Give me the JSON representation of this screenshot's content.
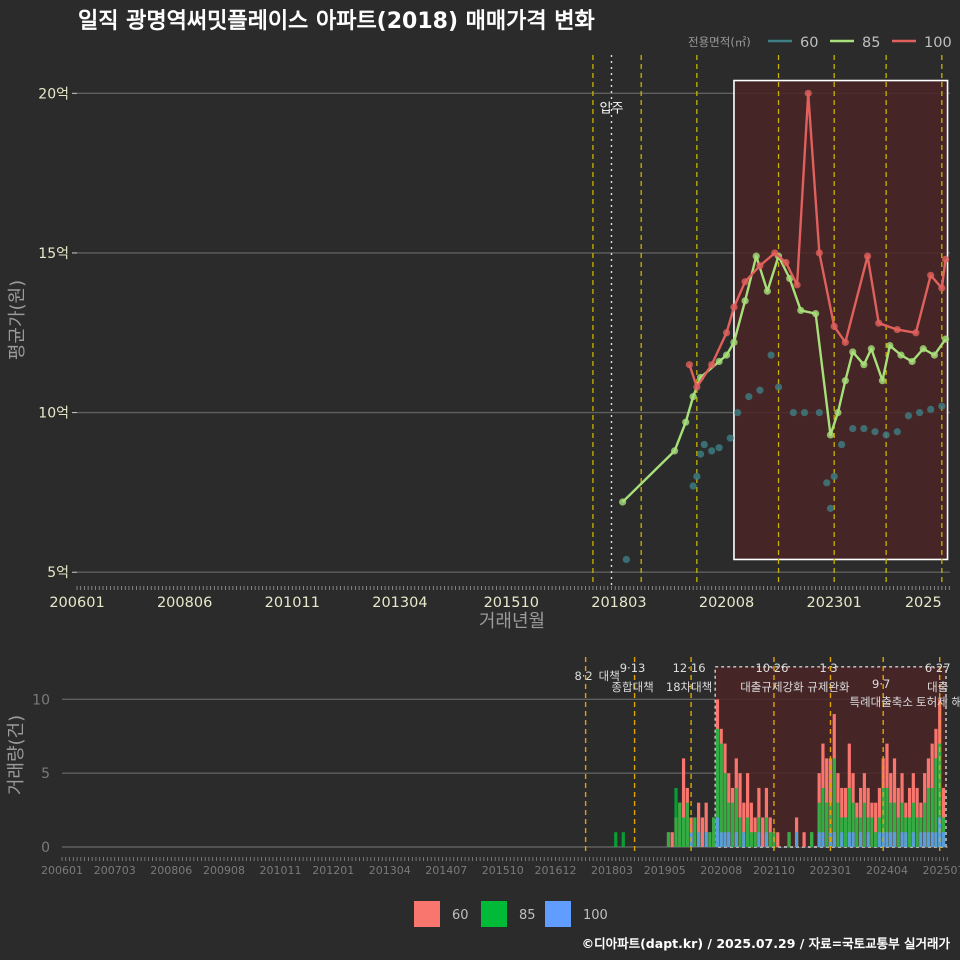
{
  "header": {
    "title": "일직 광명역써밋플레이스 아파트(2018) 매매가격 변화",
    "footer": "©디아파트(dapt.kr) / 2025.07.29 / 자료=국토교통부 실거래가"
  },
  "colors": {
    "background": "#2b2b2c",
    "s60": "#3d7f85",
    "s85": "#a7e07a",
    "s100": "#e0605c",
    "bar60": "#f8766d",
    "bar85": "#00ba38",
    "bar100": "#619cff",
    "policy_line": "#c8b400",
    "highlight_fill": "#4a2426"
  },
  "chart_data": [
    {
      "type": "line",
      "title": "일직 광명역써밋플레이스 아파트(2018) 매매가격 변화",
      "xlabel": "거래년월",
      "ylabel": "평균가(원)",
      "x_ticks": [
        "200601",
        "200806",
        "201011",
        "201304",
        "201510",
        "201803",
        "202008",
        "202301",
        "2025"
      ],
      "y_ticks": [
        "5억",
        "10억",
        "15억",
        "20억"
      ],
      "ylim_eok": [
        4.6,
        21.2
      ],
      "legend_title": "전용면적(㎡)",
      "legend_position": "top-right",
      "movein_label": "입주",
      "movein_date": "2018.01",
      "policy_dates": [
        "2017.08",
        "2018.09",
        "2019.12",
        "2021.10",
        "2023.01",
        "2024.03",
        "2025.06"
      ],
      "highlight_range": [
        "2020.10",
        "2025.07"
      ],
      "series": [
        {
          "name": "60",
          "points": [
            [
              "2018.05",
              5.4
            ],
            [
              "2019.11",
              7.7
            ],
            [
              "2019.12",
              8.0
            ],
            [
              "2020.01",
              8.7
            ],
            [
              "2020.02",
              9.0
            ],
            [
              "2020.04",
              8.8
            ],
            [
              "2020.06",
              8.9
            ],
            [
              "2020.09",
              9.2
            ],
            [
              "2020.11",
              10.0
            ],
            [
              "2021.02",
              10.5
            ],
            [
              "2021.05",
              10.7
            ],
            [
              "2021.08",
              11.8
            ],
            [
              "2021.10",
              10.8
            ],
            [
              "2022.02",
              10.0
            ],
            [
              "2022.05",
              10.0
            ],
            [
              "2022.09",
              10.0
            ],
            [
              "2022.11",
              7.8
            ],
            [
              "2022.12",
              7.0
            ],
            [
              "2023.01",
              8.0
            ],
            [
              "2023.03",
              9.0
            ],
            [
              "2023.06",
              9.5
            ],
            [
              "2023.09",
              9.5
            ],
            [
              "2023.12",
              9.4
            ],
            [
              "2024.03",
              9.3
            ],
            [
              "2024.06",
              9.4
            ],
            [
              "2024.09",
              9.9
            ],
            [
              "2024.12",
              10.0
            ],
            [
              "2025.03",
              10.1
            ],
            [
              "2025.06",
              10.2
            ]
          ]
        },
        {
          "name": "85",
          "points": [
            [
              "2018.04",
              7.2
            ],
            [
              "2019.06",
              8.8
            ],
            [
              "2019.09",
              9.7
            ],
            [
              "2019.11",
              10.5
            ],
            [
              "2020.01",
              11.1
            ],
            [
              "2020.06",
              11.6
            ],
            [
              "2020.08",
              11.8
            ],
            [
              "2020.10",
              12.2
            ],
            [
              "2021.01",
              13.5
            ],
            [
              "2021.04",
              14.9
            ],
            [
              "2021.07",
              13.8
            ],
            [
              "2021.10",
              14.9
            ],
            [
              "2022.01",
              14.2
            ],
            [
              "2022.04",
              13.2
            ],
            [
              "2022.08",
              13.1
            ],
            [
              "2022.12",
              9.3
            ],
            [
              "2023.02",
              10.0
            ],
            [
              "2023.04",
              11.0
            ],
            [
              "2023.06",
              11.9
            ],
            [
              "2023.09",
              11.5
            ],
            [
              "2023.11",
              12.0
            ],
            [
              "2024.02",
              11.0
            ],
            [
              "2024.04",
              12.1
            ],
            [
              "2024.07",
              11.8
            ],
            [
              "2024.10",
              11.6
            ],
            [
              "2025.01",
              12.0
            ],
            [
              "2025.04",
              11.8
            ],
            [
              "2025.07",
              12.3
            ]
          ]
        },
        {
          "name": "100",
          "points": [
            [
              "2019.10",
              11.5
            ],
            [
              "2019.12",
              10.8
            ],
            [
              "2020.04",
              11.5
            ],
            [
              "2020.08",
              12.5
            ],
            [
              "2020.10",
              13.3
            ],
            [
              "2021.01",
              14.1
            ],
            [
              "2021.05",
              14.6
            ],
            [
              "2021.09",
              15.0
            ],
            [
              "2021.12",
              14.7
            ],
            [
              "2022.03",
              14.0
            ],
            [
              "2022.06",
              20.0
            ],
            [
              "2022.09",
              15.0
            ],
            [
              "2023.01",
              12.7
            ],
            [
              "2023.04",
              12.2
            ],
            [
              "2023.10",
              14.9
            ],
            [
              "2024.01",
              12.8
            ],
            [
              "2024.06",
              12.6
            ],
            [
              "2024.11",
              12.5
            ],
            [
              "2025.03",
              14.3
            ],
            [
              "2025.06",
              13.9
            ],
            [
              "2025.07",
              14.8
            ]
          ]
        }
      ]
    },
    {
      "type": "bar",
      "ylabel": "거래량(건)",
      "x_ticks": [
        "200601",
        "200703",
        "200806",
        "200908",
        "201011",
        "201201",
        "201304",
        "201407",
        "201510",
        "201612",
        "201803",
        "201905",
        "202008",
        "202110",
        "202301",
        "202404",
        "202507"
      ],
      "y_ticks": [
        "0",
        "5",
        "10"
      ],
      "ylim": [
        0,
        13
      ],
      "policies": [
        {
          "date": "2017.08",
          "line1": "8·2",
          "line2": "대책"
        },
        {
          "date": "2018.09",
          "line1": "9·13",
          "line2": "종합대책"
        },
        {
          "date": "2019.12",
          "line1": "12·16",
          "line2": "18차대책"
        },
        {
          "date": "2021.10",
          "line1": "10·26",
          "line2": "대출규제강화"
        },
        {
          "date": "2023.01",
          "line1": "1·3",
          "line2": "규제완화"
        },
        {
          "date": "2024.03",
          "line1": "9·7",
          "line2": "특례대출축소"
        },
        {
          "date": "2025.06",
          "line1": "6·27",
          "line2": "대출"
        }
      ],
      "extra_annotations": [
        "토허제 해"
      ],
      "legend": [
        "60",
        "85",
        "100"
      ],
      "volumes": [
        [
          "2018.04",
          0,
          1,
          0
        ],
        [
          "2018.06",
          0,
          1,
          0
        ],
        [
          "2019.06",
          1,
          1,
          0
        ],
        [
          "2019.07",
          1,
          0,
          0
        ],
        [
          "2019.08",
          2,
          4,
          0
        ],
        [
          "2019.09",
          3,
          3,
          0
        ],
        [
          "2019.10",
          6,
          2,
          0
        ],
        [
          "2019.11",
          4,
          3,
          0
        ],
        [
          "2019.12",
          2,
          1,
          1
        ],
        [
          "2020.01",
          2,
          2,
          0
        ],
        [
          "2020.02",
          3,
          1,
          1
        ],
        [
          "2020.03",
          2,
          0,
          0
        ],
        [
          "2020.04",
          3,
          1,
          1
        ],
        [
          "2020.05",
          1,
          1,
          0
        ],
        [
          "2020.06",
          2,
          2,
          0
        ],
        [
          "2020.07",
          10,
          8,
          2
        ],
        [
          "2020.08",
          8,
          7,
          1
        ],
        [
          "2020.09",
          7,
          5,
          1
        ],
        [
          "2020.10",
          5,
          3,
          1
        ],
        [
          "2020.11",
          4,
          3,
          0
        ],
        [
          "2020.12",
          6,
          4,
          1
        ],
        [
          "2021.01",
          5,
          2,
          0
        ],
        [
          "2021.02",
          3,
          1,
          1
        ],
        [
          "2021.03",
          5,
          2,
          0
        ],
        [
          "2021.04",
          3,
          1,
          0
        ],
        [
          "2021.05",
          2,
          1,
          0
        ],
        [
          "2021.06",
          4,
          2,
          1
        ],
        [
          "2021.07",
          2,
          0,
          0
        ],
        [
          "2021.08",
          4,
          2,
          1
        ],
        [
          "2021.09",
          2,
          1,
          0
        ],
        [
          "2021.10",
          1,
          1,
          0
        ],
        [
          "2021.11",
          1,
          0,
          0
        ],
        [
          "2022.02",
          1,
          1,
          0
        ],
        [
          "2022.04",
          2,
          1,
          1
        ],
        [
          "2022.06",
          1,
          0,
          0
        ],
        [
          "2022.08",
          1,
          1,
          0
        ],
        [
          "2022.10",
          5,
          3,
          1
        ],
        [
          "2022.11",
          7,
          4,
          1
        ],
        [
          "2022.12",
          6,
          3,
          0
        ],
        [
          "2023.01",
          6,
          3,
          1
        ],
        [
          "2023.02",
          9,
          6,
          1
        ],
        [
          "2023.03",
          5,
          3,
          0
        ],
        [
          "2023.04",
          4,
          2,
          1
        ],
        [
          "2023.05",
          4,
          2,
          0
        ],
        [
          "2023.06",
          7,
          4,
          1
        ],
        [
          "2023.07",
          5,
          3,
          1
        ],
        [
          "2023.08",
          3,
          2,
          0
        ],
        [
          "2023.09",
          4,
          2,
          1
        ],
        [
          "2023.10",
          5,
          3,
          0
        ],
        [
          "2023.11",
          4,
          2,
          1
        ],
        [
          "2023.12",
          3,
          2,
          0
        ],
        [
          "2024.01",
          3,
          1,
          0
        ],
        [
          "2024.02",
          4,
          2,
          1
        ],
        [
          "2024.03",
          6,
          4,
          1
        ],
        [
          "2024.04",
          7,
          4,
          1
        ],
        [
          "2024.05",
          5,
          3,
          1
        ],
        [
          "2024.06",
          6,
          3,
          1
        ],
        [
          "2024.07",
          4,
          2,
          0
        ],
        [
          "2024.08",
          5,
          3,
          1
        ],
        [
          "2024.09",
          3,
          2,
          1
        ],
        [
          "2024.10",
          4,
          2,
          0
        ],
        [
          "2024.11",
          5,
          3,
          1
        ],
        [
          "2024.12",
          4,
          2,
          0
        ],
        [
          "2025.01",
          3,
          2,
          1
        ],
        [
          "2025.02",
          5,
          3,
          1
        ],
        [
          "2025.03",
          6,
          4,
          1
        ],
        [
          "2025.04",
          7,
          4,
          1
        ],
        [
          "2025.05",
          8,
          6,
          1
        ],
        [
          "2025.06",
          10,
          7,
          2
        ],
        [
          "2025.07",
          4,
          2,
          1
        ]
      ]
    }
  ]
}
